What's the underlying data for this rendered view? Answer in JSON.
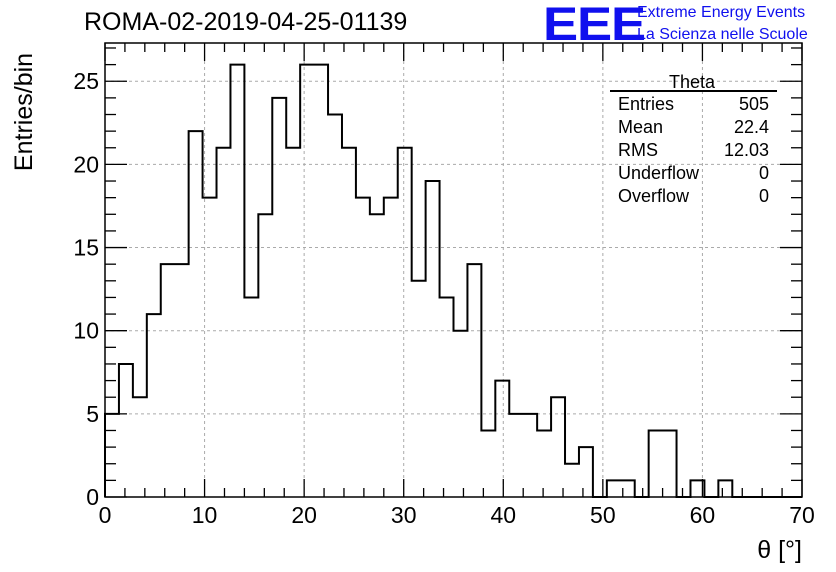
{
  "header": {
    "title": "ROMA-02-2019-04-25-01139",
    "logo_mark": "EEE",
    "logo_line1": "Extreme Energy Events",
    "logo_line2": "La Scienza nelle Scuole",
    "logo_color": "#1010ee"
  },
  "stats": {
    "title": "Theta",
    "rows": [
      {
        "label": "Entries",
        "value": "505"
      },
      {
        "label": "Mean",
        "value": "22.4"
      },
      {
        "label": "RMS",
        "value": "12.03"
      },
      {
        "label": "Underflow",
        "value": "0"
      },
      {
        "label": "Overflow",
        "value": "0"
      }
    ]
  },
  "chart_data": {
    "type": "histogram",
    "title": "",
    "xlabel": "θ [°]",
    "ylabel": "Entries/bin",
    "xlim": [
      0,
      70
    ],
    "ylim": [
      0,
      27.3
    ],
    "bin_width": 1.4,
    "bin_edges_start": 0,
    "x_ticks": [
      0,
      10,
      20,
      30,
      40,
      50,
      60,
      70
    ],
    "y_ticks": [
      0,
      5,
      10,
      15,
      20,
      25
    ],
    "grid": true,
    "values": [
      5,
      8,
      6,
      11,
      14,
      14,
      22,
      18,
      21,
      26,
      12,
      17,
      24,
      21,
      26,
      26,
      23,
      21,
      18,
      17,
      18,
      21,
      13,
      19,
      12,
      10,
      14,
      4,
      7,
      5,
      5,
      4,
      6,
      2,
      3,
      0,
      1,
      1,
      0,
      4,
      4,
      0,
      1,
      0,
      1,
      0,
      0,
      0,
      0,
      0
    ],
    "line_color": "#000000"
  }
}
